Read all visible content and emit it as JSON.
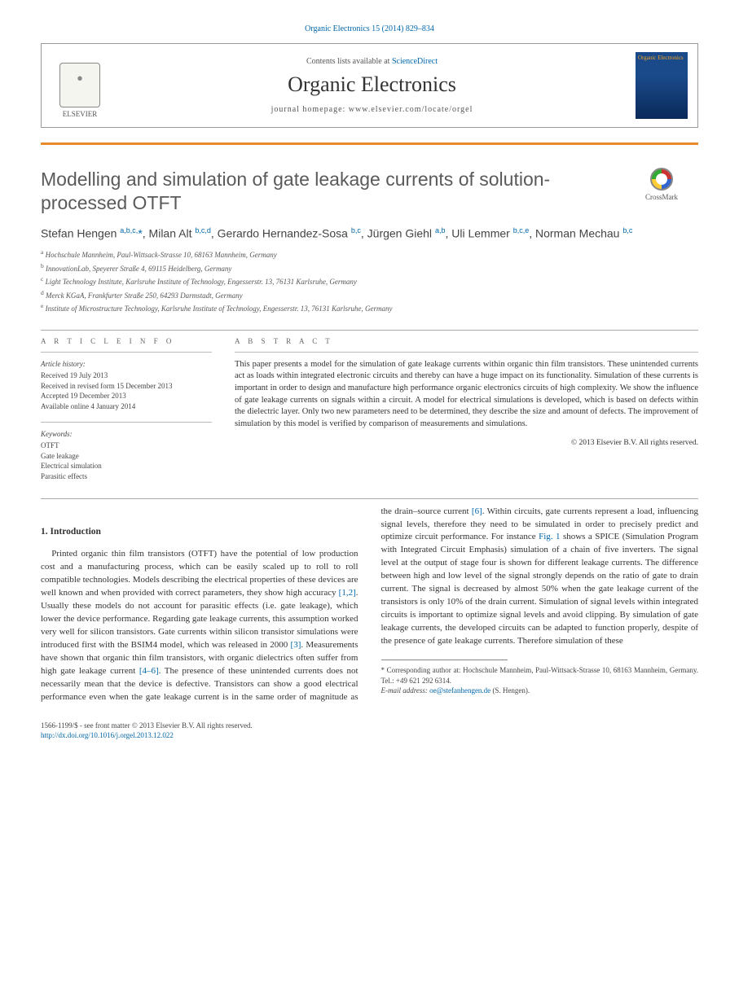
{
  "citation": {
    "text": "Organic Electronics 15 (2014) 829–834"
  },
  "header": {
    "contents_prefix": "Contents lists available at ",
    "contents_link": "ScienceDirect",
    "journal_name": "Organic Electronics",
    "homepage_label": "journal homepage: www.elsevier.com/locate/orgel",
    "publisher_logo_label": "ELSEVIER",
    "cover_text": "Organic Electronics"
  },
  "crossmark": {
    "label": "CrossMark"
  },
  "title": "Modelling and simulation of gate leakage currents of solution-processed OTFT",
  "authors_html": "Stefan Hengen <sup>a,b,c,</sup><span class='star'>*</span>, Milan Alt <sup>b,c,d</sup>, Gerardo Hernandez-Sosa <sup>b,c</sup>, Jürgen Giehl <sup>a,b</sup>, Uli Lemmer <sup>b,c,e</sup>, Norman Mechau <sup>b,c</sup>",
  "affiliations": [
    "a Hochschule Mannheim, Paul-Wittsack-Strasse 10, 68163 Mannheim, Germany",
    "b InnovationLab, Speyerer Straße 4, 69115 Heidelberg, Germany",
    "c Light Technology Institute, Karlsruhe Institute of Technology, Engesserstr. 13, 76131 Karlsruhe, Germany",
    "d Merck KGaA, Frankfurter Straße 250, 64293 Darmstadt, Germany",
    "e Institute of Microstructure Technology, Karlsruhe Institute of Technology, Engesserstr. 13, 76131 Karlsruhe, Germany"
  ],
  "article_info": {
    "heading": "A R T I C L E   I N F O",
    "history_label": "Article history:",
    "history": [
      "Received 19 July 2013",
      "Received in revised form 15 December 2013",
      "Accepted 19 December 2013",
      "Available online 4 January 2014"
    ],
    "keywords_label": "Keywords:",
    "keywords": [
      "OTFT",
      "Gate leakage",
      "Electrical simulation",
      "Parasitic effects"
    ]
  },
  "abstract": {
    "heading": "A B S T R A C T",
    "text": "This paper presents a model for the simulation of gate leakage currents within organic thin film transistors. These unintended currents act as loads within integrated electronic circuits and thereby can have a huge impact on its functionality. Simulation of these currents is important in order to design and manufacture high performance organic electronics circuits of high complexity. We show the influence of gate leakage currents on signals within a circuit. A model for electrical simulations is developed, which is based on defects within the dielectric layer. Only two new parameters need to be determined, they describe the size and amount of defects. The improvement of simulation by this model is verified by comparison of measurements and simulations.",
    "copyright": "© 2013 Elsevier B.V. All rights reserved."
  },
  "body": {
    "section_heading": "1. Introduction",
    "col1_p1_a": "Printed organic thin film transistors (OTFT) have the potential of low production cost and a manufacturing process, which can be easily scaled up to roll to roll compatible technologies. Models describing the electrical properties of these devices are well known and when provided with correct parameters, they show high accuracy ",
    "ref12": "[1,2]",
    "col1_p1_b": ". Usually these models do not account for parasitic effects (i.e. gate leakage), which lower the device performance. Regarding gate leakage currents, this assumption worked very well for silicon transistors. Gate currents within silicon transistor simulations were introduced first with the BSIM4 model, which was released in 2000 ",
    "ref3": "[3]",
    "col1_p1_c": ". Measurements have shown that organic thin film transistors, with organic dielectrics often suffer from high gate leakage current ",
    "ref46": "[4–6]",
    "col2_p1_a": ". The presence of these unintended currents does not necessarily mean that the device is defective. Transistors can show a good electrical performance even when the gate leakage current is in the same order of magnitude as the drain–source current ",
    "ref6": "[6]",
    "col2_p1_b": ". Within circuits, gate currents represent a load, influencing signal levels, therefore they need to be simulated in order to precisely predict and optimize circuit performance. For instance ",
    "fig1": "Fig. 1",
    "col2_p1_c": " shows a SPICE (Simulation Program with Integrated Circuit Emphasis) simulation of a chain of five inverters. The signal level at the output of stage four is shown for different leakage currents. The difference between high and low level of the signal strongly depends on the ratio of gate to drain current. The signal is decreased by almost 50% when the gate leakage current of the transistors is only 10% of the drain current. Simulation of signal levels within integrated circuits is important to optimize signal levels and avoid clipping. By simulation of gate leakage currents, the developed circuits can be adapted to function properly, despite of the presence of gate leakage currents. Therefore simulation of these"
  },
  "footnotes": {
    "corr": "* Corresponding author at: Hochschule Mannheim, Paul-Wittsack-Strasse 10, 68163 Mannheim, Germany. Tel.: +49 621 292 6314.",
    "email_label": "E-mail address: ",
    "email": "oe@stefanhengen.de",
    "email_suffix": " (S. Hengen)."
  },
  "footer": {
    "line1": "1566-1199/$ - see front matter © 2013 Elsevier B.V. All rights reserved.",
    "doi": "http://dx.doi.org/10.1016/j.orgel.2013.12.022"
  },
  "colors": {
    "link": "#0066aa",
    "orange_bar": "#e88a2a"
  }
}
